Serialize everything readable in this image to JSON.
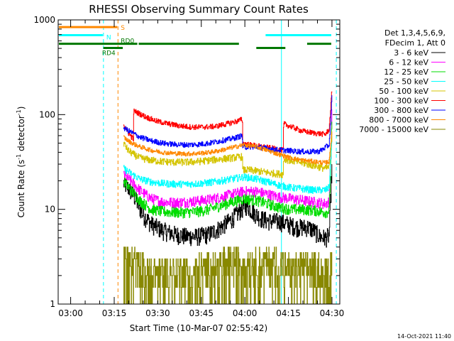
{
  "chart_data": {
    "type": "line",
    "title": "RHESSI Observing Summary Count Rates",
    "xlabel": "Start Time (10-Mar-07 02:55:42)",
    "ylabel_main": "Count Rate (s",
    "ylabel_exp1": "-1",
    "ylabel_mid": " detector",
    "ylabel_exp2": "-1",
    "ylabel_end": ")",
    "ylim": [
      1,
      1000
    ],
    "yscale": "log",
    "xlim_minutes": [
      0,
      97
    ],
    "x_ticks": [
      {
        "label": "03:00",
        "t": 4.3
      },
      {
        "label": "03:15",
        "t": 19.3
      },
      {
        "label": "03:30",
        "t": 34.3
      },
      {
        "label": "03:45",
        "t": 49.3
      },
      {
        "label": "04:00",
        "t": 64.3
      },
      {
        "label": "04:15",
        "t": 79.3
      },
      {
        "label": "04:30",
        "t": 94.3
      }
    ],
    "y_ticks": [
      {
        "label": "1",
        "v": 1
      },
      {
        "label": "10",
        "v": 10
      },
      {
        "label": "100",
        "v": 100
      },
      {
        "label": "1000",
        "v": 1000
      }
    ],
    "legend": {
      "header1": "Det 1,3,4,5,6,9,",
      "header2": "FDecim 1, Att 0",
      "entries": [
        {
          "label": "3 - 6 keV",
          "color": "#000000"
        },
        {
          "label": "6 - 12 keV",
          "color": "#ff00ff"
        },
        {
          "label": "12 - 25 keV",
          "color": "#00dd00"
        },
        {
          "label": "25 - 50 keV",
          "color": "#00ffff"
        },
        {
          "label": "50 - 100 keV",
          "color": "#d4c400"
        },
        {
          "label": "100 - 300 keV",
          "color": "#ff0000"
        },
        {
          "label": "300 - 800 keV",
          "color": "#0000ff"
        },
        {
          "label": "800 - 7000 keV",
          "color": "#ff8800"
        },
        {
          "label": "7000 - 15000 keV",
          "color": "#888800"
        }
      ]
    },
    "flags": [
      {
        "label": "S",
        "color": "#ff8800",
        "segments": [
          [
            0,
            20.6
          ]
        ],
        "v": 840
      },
      {
        "label": "N",
        "color": "#00ffff",
        "segments": [
          [
            0,
            15.6
          ],
          [
            71.2,
            94.3
          ]
        ],
        "v": 690
      },
      {
        "label": "RD0",
        "color": "#007700",
        "segments": [
          [
            0,
            27.5
          ],
          [
            27.5,
            62.5
          ],
          [
            85.5,
            94.3
          ]
        ],
        "v": 560
      },
      {
        "label": "RD4",
        "color": "#007700",
        "segments": [
          [
            15.3,
            22.5
          ],
          [
            68.0,
            78.5
          ]
        ],
        "v": 505
      }
    ],
    "vlines": [
      {
        "t": 15.6,
        "color": "#00ffff",
        "style": "dashed"
      },
      {
        "t": 20.6,
        "color": "#ff8800",
        "style": "dashed"
      },
      {
        "t": 76.9,
        "color": "#00ffff",
        "style": "solid"
      },
      {
        "t": 95.8,
        "color": "#00ffff",
        "style": "dashed"
      },
      {
        "t": 0.0,
        "color": "#00ffff",
        "style": "solid"
      }
    ],
    "series": [
      {
        "name": "3 - 6 keV",
        "color": "#000000",
        "noise": 0.1,
        "spikes": [],
        "points": [
          [
            22.5,
            19
          ],
          [
            24,
            17
          ],
          [
            26,
            14
          ],
          [
            29,
            9
          ],
          [
            32,
            7
          ],
          [
            36,
            6
          ],
          [
            40,
            5.5
          ],
          [
            44,
            5.2
          ],
          [
            48,
            5.2
          ],
          [
            52,
            5.5
          ],
          [
            56,
            6.5
          ],
          [
            60,
            8
          ],
          [
            63,
            10
          ],
          [
            65,
            11
          ],
          [
            67,
            9.5
          ],
          [
            70,
            8
          ],
          [
            73,
            7.5
          ],
          [
            76,
            7.5
          ],
          [
            79,
            7
          ],
          [
            82,
            6.5
          ],
          [
            86,
            6.5
          ],
          [
            88,
            6
          ],
          [
            90,
            5.2
          ],
          [
            92,
            5
          ],
          [
            93.3,
            5.3
          ],
          [
            94.3,
            30
          ]
        ]
      },
      {
        "name": "6 - 12 keV",
        "color": "#ff00ff",
        "noise": 0.06,
        "spikes": [],
        "points": [
          [
            22.5,
            23
          ],
          [
            25,
            20
          ],
          [
            28,
            16
          ],
          [
            32,
            13
          ],
          [
            36,
            12
          ],
          [
            40,
            11.8
          ],
          [
            44,
            12
          ],
          [
            48,
            12.3
          ],
          [
            52,
            12.7
          ],
          [
            56,
            13.5
          ],
          [
            60,
            14.5
          ],
          [
            64,
            15.5
          ],
          [
            68,
            15.5
          ],
          [
            72,
            14.5
          ],
          [
            76,
            13.5
          ],
          [
            80,
            13
          ],
          [
            84,
            12.5
          ],
          [
            88,
            12
          ],
          [
            92,
            11.5
          ],
          [
            93.3,
            12
          ],
          [
            94.3,
            110
          ]
        ]
      },
      {
        "name": "12 - 25 keV",
        "color": "#00dd00",
        "noise": 0.06,
        "spikes": [],
        "points": [
          [
            22.5,
            20
          ],
          [
            25,
            16
          ],
          [
            28,
            12.5
          ],
          [
            32,
            10
          ],
          [
            36,
            9.5
          ],
          [
            40,
            9.3
          ],
          [
            44,
            9.3
          ],
          [
            48,
            9.5
          ],
          [
            52,
            10
          ],
          [
            56,
            11
          ],
          [
            60,
            12
          ],
          [
            64,
            13
          ],
          [
            68,
            12.5
          ],
          [
            72,
            11.5
          ],
          [
            76,
            10.5
          ],
          [
            80,
            10
          ],
          [
            84,
            10
          ],
          [
            88,
            9.8
          ],
          [
            92,
            9.3
          ],
          [
            93.3,
            9.6
          ],
          [
            94.3,
            90
          ]
        ]
      },
      {
        "name": "25 - 50 keV",
        "color": "#00ffff",
        "noise": 0.04,
        "spikes": [],
        "points": [
          [
            22.5,
            27
          ],
          [
            25,
            24
          ],
          [
            28,
            21
          ],
          [
            32,
            19.5
          ],
          [
            36,
            18.8
          ],
          [
            40,
            18.5
          ],
          [
            44,
            18.5
          ],
          [
            48,
            18.7
          ],
          [
            52,
            19.2
          ],
          [
            56,
            20
          ],
          [
            60,
            21
          ],
          [
            64,
            22
          ],
          [
            68,
            21
          ],
          [
            72,
            19.5
          ],
          [
            76,
            18
          ],
          [
            80,
            17
          ],
          [
            84,
            16.5
          ],
          [
            88,
            16
          ],
          [
            92,
            16
          ],
          [
            93.3,
            17
          ],
          [
            94.3,
            60
          ]
        ]
      },
      {
        "name": "50 - 100 keV",
        "color": "#d4c400",
        "noise": 0.04,
        "spikes": [],
        "points": [
          [
            22.5,
            50
          ],
          [
            24,
            42
          ],
          [
            26,
            38
          ],
          [
            28,
            35
          ],
          [
            32,
            33
          ],
          [
            36,
            32
          ],
          [
            40,
            31.5
          ],
          [
            44,
            31.5
          ],
          [
            48,
            32
          ],
          [
            52,
            33
          ],
          [
            56,
            34
          ],
          [
            60,
            35
          ],
          [
            63.4,
            36
          ],
          [
            63.5,
            26
          ],
          [
            66,
            26
          ],
          [
            70,
            25
          ],
          [
            74,
            24
          ],
          [
            77.5,
            23.5
          ],
          [
            77.6,
            34
          ],
          [
            80,
            33
          ],
          [
            84,
            31
          ],
          [
            88,
            29
          ],
          [
            92,
            27
          ],
          [
            93.3,
            28
          ],
          [
            94.3,
            65
          ]
        ]
      },
      {
        "name": "100 - 300 keV",
        "color": "#ff0000",
        "noise": 0.03,
        "spikes": [],
        "points": [
          [
            22.5,
            80
          ],
          [
            24,
            65
          ],
          [
            25.9,
            55
          ],
          [
            26,
            110
          ],
          [
            30,
            95
          ],
          [
            34,
            85
          ],
          [
            38,
            80
          ],
          [
            42,
            76
          ],
          [
            46,
            74
          ],
          [
            50,
            74
          ],
          [
            54,
            75
          ],
          [
            58,
            80
          ],
          [
            62,
            86
          ],
          [
            63.4,
            90
          ],
          [
            63.5,
            50
          ],
          [
            66,
            48
          ],
          [
            70,
            46
          ],
          [
            74,
            44
          ],
          [
            77.5,
            42
          ],
          [
            77.6,
            80
          ],
          [
            80,
            75
          ],
          [
            84,
            67
          ],
          [
            88,
            64
          ],
          [
            92,
            62
          ],
          [
            93.3,
            70
          ],
          [
            94.3,
            190
          ]
        ]
      },
      {
        "name": "300 - 800 keV",
        "color": "#0000ff",
        "noise": 0.03,
        "spikes": [],
        "points": [
          [
            22.5,
            73
          ],
          [
            24,
            68
          ],
          [
            26,
            63
          ],
          [
            28,
            58
          ],
          [
            32,
            53
          ],
          [
            36,
            50
          ],
          [
            40,
            48.5
          ],
          [
            44,
            48
          ],
          [
            48,
            48.5
          ],
          [
            52,
            50
          ],
          [
            56,
            53
          ],
          [
            60,
            56
          ],
          [
            63.4,
            60
          ],
          [
            63.5,
            45
          ],
          [
            66,
            46
          ],
          [
            70,
            45
          ],
          [
            74,
            43
          ],
          [
            78,
            42
          ],
          [
            82,
            41
          ],
          [
            86,
            40.5
          ],
          [
            90,
            41
          ],
          [
            93.3,
            48
          ],
          [
            94.3,
            160
          ]
        ]
      },
      {
        "name": "800 - 7000 keV",
        "color": "#ff8800",
        "noise": 0.025,
        "spikes": [],
        "points": [
          [
            22.5,
            58
          ],
          [
            24,
            53
          ],
          [
            26,
            49
          ],
          [
            28,
            46
          ],
          [
            32,
            42
          ],
          [
            36,
            40
          ],
          [
            40,
            39
          ],
          [
            44,
            38.5
          ],
          [
            48,
            39
          ],
          [
            52,
            40
          ],
          [
            56,
            42
          ],
          [
            60,
            45
          ],
          [
            64,
            48
          ],
          [
            68,
            46
          ],
          [
            72,
            42
          ],
          [
            76,
            38
          ],
          [
            80,
            35
          ],
          [
            84,
            33
          ],
          [
            88,
            32
          ],
          [
            92,
            31
          ],
          [
            93.3,
            32
          ],
          [
            94.3,
            70
          ]
        ]
      },
      {
        "name": "7000 - 15000 keV",
        "color": "#888800",
        "noise": 0.0,
        "spikes": [],
        "points": [
          [
            22.5,
            3.8
          ],
          [
            23.5,
            4.0
          ],
          [
            24,
            3.3
          ],
          [
            25,
            2.8
          ],
          [
            26,
            3.0
          ],
          [
            27,
            2.6
          ],
          [
            28,
            2.5
          ],
          [
            30,
            2.3
          ],
          [
            32,
            2.2
          ],
          [
            34,
            2.3
          ],
          [
            36,
            2.3
          ],
          [
            40,
            2.2
          ],
          [
            44,
            2.3
          ],
          [
            48,
            2.3
          ],
          [
            52,
            2.5
          ],
          [
            56,
            2.7
          ],
          [
            60,
            2.8
          ],
          [
            64,
            2.9
          ],
          [
            68,
            2.8
          ],
          [
            72,
            2.7
          ],
          [
            75,
            2.8
          ],
          [
            76.8,
            2.7
          ],
          [
            77.5,
            2.5
          ],
          [
            80,
            2.3
          ],
          [
            84,
            2.4
          ],
          [
            88,
            2.5
          ],
          [
            92,
            2.2
          ],
          [
            93.3,
            2.4
          ],
          [
            94.3,
            3.2
          ]
        ]
      }
    ]
  },
  "footer": {
    "date": "14-Oct-2021 11:40"
  }
}
